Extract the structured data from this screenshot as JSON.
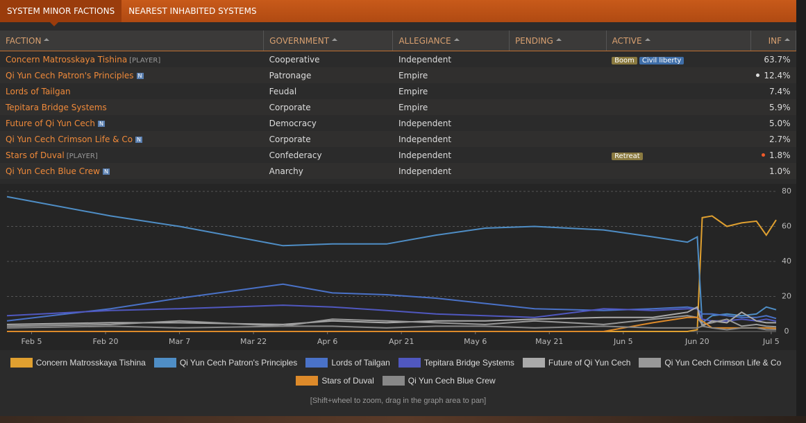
{
  "tabs": [
    "SYSTEM MINOR FACTIONS",
    "NEAREST INHABITED SYSTEMS"
  ],
  "table": {
    "headers": [
      "FACTION",
      "GOVERNMENT",
      "ALLEGIANCE",
      "PENDING",
      "ACTIVE",
      "INF"
    ],
    "rows": [
      {
        "faction": "Concern Matrosskaya Tishina",
        "tag": "[PLAYER]",
        "government": "Cooperative",
        "allegiance": "Independent",
        "active": [
          "Boom",
          "Civil liberty"
        ],
        "influence": "63.7%"
      },
      {
        "faction": "Qi Yun Cech Patron's Principles",
        "tag": "N",
        "government": "Patronage",
        "allegiance": "Empire",
        "active": [],
        "influence": "12.4%"
      },
      {
        "faction": "Lords of Tailgan",
        "government": "Feudal",
        "allegiance": "Empire",
        "active": [],
        "influence": "7.4%"
      },
      {
        "faction": "Tepitara Bridge Systems",
        "government": "Corporate",
        "allegiance": "Empire",
        "active": [],
        "influence": "5.9%"
      },
      {
        "faction": "Future of Qi Yun Cech",
        "tag": "N",
        "government": "Democracy",
        "allegiance": "Independent",
        "active": [],
        "influence": "5.0%"
      },
      {
        "faction": "Qi Yun Cech Crimson Life & Co",
        "tag": "N",
        "government": "Corporate",
        "allegiance": "Independent",
        "active": [],
        "influence": "2.7%"
      },
      {
        "faction": "Stars of Duval",
        "tag": "[PLAYER]",
        "government": "Confederacy",
        "allegiance": "Independent",
        "active": [
          "Retreat"
        ],
        "influence": "1.8%"
      },
      {
        "faction": "Qi Yun Cech Blue Crew",
        "tag": "N",
        "government": "Anarchy",
        "allegiance": "Independent",
        "active": [],
        "influence": "1.0%"
      }
    ]
  },
  "chart_data": {
    "type": "line",
    "x": [
      "Jan 31",
      "Feb 21",
      "Mar 7",
      "Mar 28",
      "Apr 7",
      "Apr 18",
      "Apr 28",
      "May 8",
      "May 18",
      "Jun 1",
      "Jun 11",
      "Jun 18",
      "Jun 20",
      "Jun 21",
      "Jun 23",
      "Jun 26",
      "Jun 29",
      "Jul 2",
      "Jul 4",
      "Jul 6"
    ],
    "xlim": [
      "Jan 31",
      "Jul 6"
    ],
    "xticks": [
      "Feb 5",
      "Feb 20",
      "Mar 7",
      "Mar 22",
      "Apr 6",
      "Apr 21",
      "May 6",
      "May 21",
      "Jun 5",
      "Jun 20",
      "Jul 5"
    ],
    "ylim": [
      0,
      80
    ],
    "yticks": [
      0,
      20,
      40,
      60,
      80
    ],
    "grid": true,
    "series": [
      {
        "name": "Concern Matrosskaya Tishina",
        "color": "#e0a030",
        "values": [
          0,
          0,
          0,
          0,
          0,
          0,
          0,
          0,
          0,
          0,
          0,
          0,
          1,
          65,
          66,
          60,
          62,
          63,
          55,
          63.7
        ]
      },
      {
        "name": "Qi Yun Cech Patron's Principles",
        "color": "#4f8ec6",
        "values": [
          77,
          66,
          60,
          49,
          50,
          50,
          55,
          59,
          60,
          58,
          54,
          51,
          54,
          5,
          9,
          10,
          9,
          10,
          14,
          12.4
        ]
      },
      {
        "name": "Lords of Tailgan",
        "color": "#4a72c8",
        "values": [
          6,
          13,
          19,
          27,
          22,
          21,
          19,
          16,
          13,
          12,
          13,
          14,
          13,
          10,
          10,
          9,
          8,
          8,
          9,
          7.4
        ]
      },
      {
        "name": "Tepitara Bridge Systems",
        "color": "#5058c0",
        "values": [
          9,
          12,
          13,
          15,
          14,
          12,
          10,
          9,
          8,
          13,
          12,
          13,
          13,
          7,
          6,
          6,
          7,
          6,
          7,
          5.9
        ]
      },
      {
        "name": "Future of Qi Yun Cech",
        "color": "#aaaaaa",
        "values": [
          4,
          5,
          5,
          4,
          6,
          5,
          6,
          6,
          7,
          8,
          8,
          11,
          14,
          3,
          6,
          5,
          11,
          6,
          5,
          5
        ]
      },
      {
        "name": "Qi Yun Cech Crimson Life & Co",
        "color": "#999999",
        "values": [
          3,
          4,
          6,
          3,
          7,
          6,
          5,
          4,
          6,
          4,
          7,
          9,
          8,
          4,
          5,
          7,
          3,
          4,
          3,
          2.7
        ]
      },
      {
        "name": "Stars of Duval",
        "color": "#dd8a2a",
        "values": [
          0,
          0,
          0,
          0,
          0,
          0,
          0,
          0,
          0,
          0,
          5,
          8,
          8,
          6,
          2,
          2,
          2,
          2,
          2,
          1.8
        ]
      },
      {
        "name": "Qi Yun Cech Blue Crew",
        "color": "#888888",
        "values": [
          2,
          3,
          2,
          3,
          3,
          2,
          3,
          3,
          2,
          3,
          2,
          2,
          2,
          3,
          2,
          1,
          2,
          2,
          1,
          1.0
        ]
      }
    ]
  },
  "hint": "[Shift+wheel to zoom, drag in the graph area to pan]"
}
